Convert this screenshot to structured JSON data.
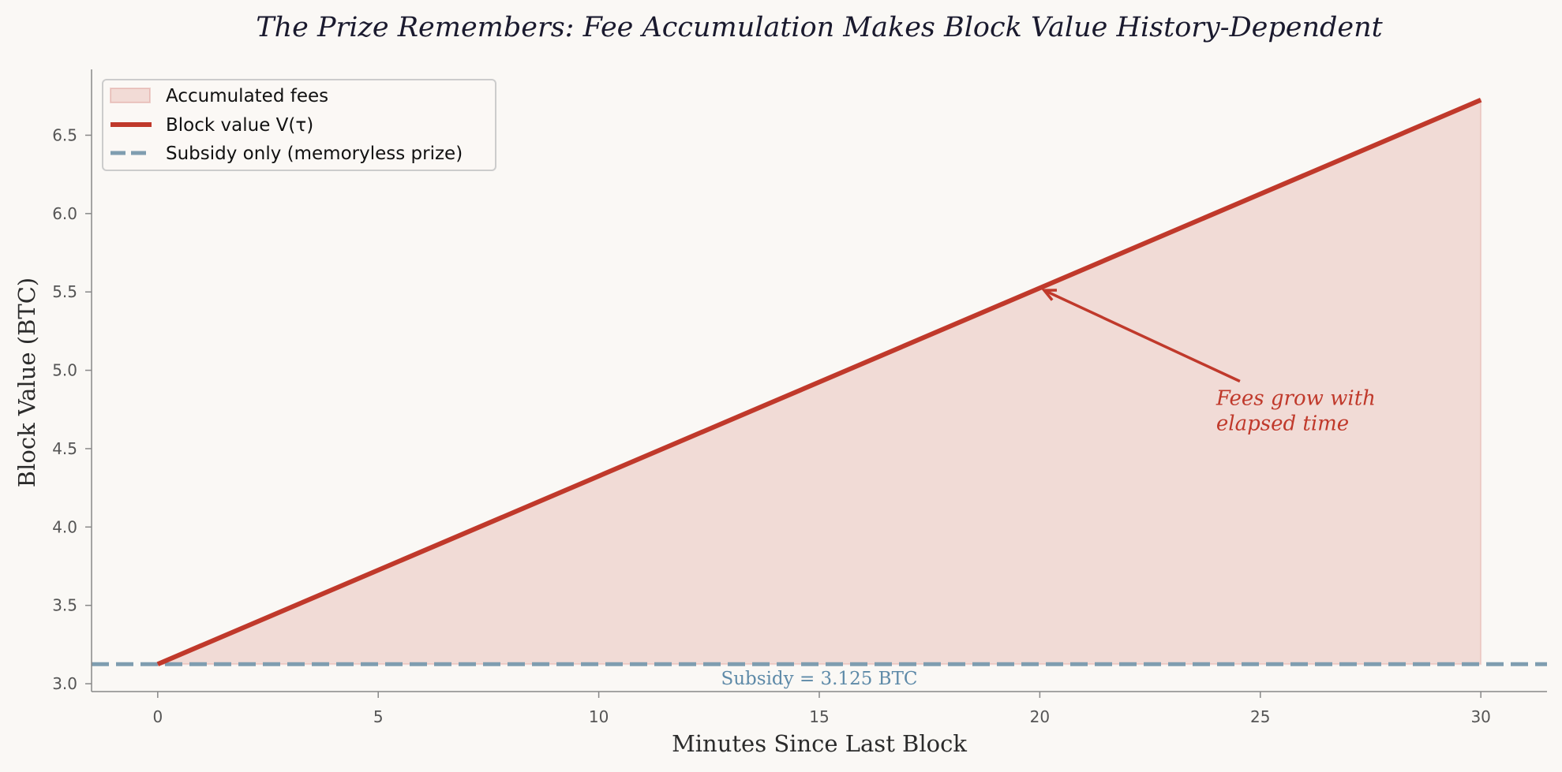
{
  "chart_data": {
    "type": "area",
    "title": "The Prize Remembers: Fee Accumulation Makes Block Value History-Dependent",
    "xlabel": "Minutes Since Last Block",
    "ylabel": "Block Value (BTC)",
    "xlim": [
      -1.5,
      31.5
    ],
    "ylim": [
      2.95,
      6.92
    ],
    "xticks": [
      0,
      5,
      10,
      15,
      20,
      25,
      30
    ],
    "xtick_labels": [
      "0",
      "5",
      "10",
      "15",
      "20",
      "25",
      "30"
    ],
    "yticks": [
      3.0,
      3.5,
      4.0,
      4.5,
      5.0,
      5.5,
      6.0,
      6.5
    ],
    "ytick_labels": [
      "3.0",
      "3.5",
      "4.0",
      "4.5",
      "5.0",
      "5.5",
      "6.0",
      "6.5"
    ],
    "grid": false,
    "legend_position": "top-left",
    "series": [
      {
        "name": "Accumulated fees",
        "kind": "fill_between",
        "x": [
          0,
          30
        ],
        "y_lower": [
          3.125,
          3.125
        ],
        "y_upper": [
          3.125,
          6.725
        ],
        "color": "#c0392b"
      },
      {
        "name": "Block value V(τ)",
        "kind": "line",
        "x": [
          0,
          30
        ],
        "y": [
          3.125,
          6.725
        ],
        "color": "#c0392b"
      },
      {
        "name": "Subsidy only (memoryless prize)",
        "kind": "hline",
        "y": 3.125,
        "color": "#7f9db0"
      }
    ],
    "annotations": [
      {
        "id": "fees-annotation",
        "lines": [
          "Fees grow with",
          "elapsed time"
        ],
        "text_x": 24.0,
        "text_y": 4.78,
        "arrow_from_x": 24.0,
        "arrow_from_y": 4.93,
        "arrow_to_x": 20.1,
        "arrow_to_y": 5.51,
        "color": "#c0392b"
      },
      {
        "id": "subsidy-annotation",
        "text": "Subsidy = 3.125 BTC",
        "x": 15,
        "y": 3.0,
        "color": "#5e8aa8"
      }
    ]
  }
}
